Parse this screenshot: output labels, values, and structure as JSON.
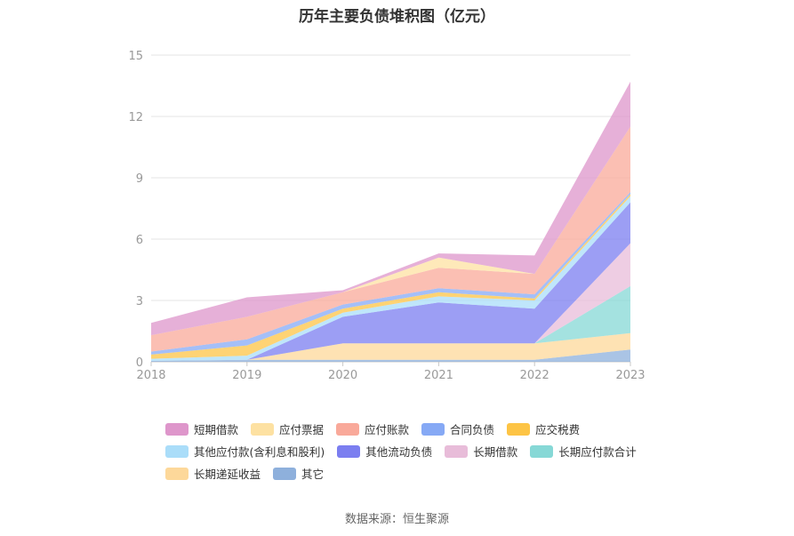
{
  "chart_data": {
    "type": "area",
    "stacked": true,
    "title": "历年主要负债堆积图（亿元）",
    "categories": [
      "2018",
      "2019",
      "2020",
      "2021",
      "2022",
      "2023"
    ],
    "ylim": [
      0,
      15
    ],
    "yticks": [
      0,
      3,
      6,
      9,
      12,
      15
    ],
    "series": [
      {
        "name": "其它",
        "color": "#8eb0dc",
        "values": [
          0.05,
          0.1,
          0.1,
          0.1,
          0.1,
          0.6
        ]
      },
      {
        "name": "长期递延收益",
        "color": "#fdd89a",
        "values": [
          0.0,
          0.0,
          0.8,
          0.8,
          0.8,
          0.8
        ]
      },
      {
        "name": "长期应付款合计",
        "color": "#86d8d6",
        "values": [
          0.0,
          0.0,
          0.0,
          0.0,
          0.0,
          2.3
        ]
      },
      {
        "name": "长期借款",
        "color": "#e8bcd9",
        "values": [
          0.0,
          0.0,
          0.0,
          0.0,
          0.0,
          2.1
        ]
      },
      {
        "name": "其他流动负债",
        "color": "#7b7ef0",
        "values": [
          0.0,
          0.0,
          1.3,
          2.0,
          1.7,
          2.0
        ]
      },
      {
        "name": "其他应付款(含利息和股利)",
        "color": "#aaddf9",
        "values": [
          0.1,
          0.2,
          0.2,
          0.3,
          0.4,
          0.3
        ]
      },
      {
        "name": "应交税费",
        "color": "#fdc445",
        "values": [
          0.2,
          0.5,
          0.2,
          0.2,
          0.1,
          0.1
        ]
      },
      {
        "name": "合同负债",
        "color": "#86a9f5",
        "values": [
          0.15,
          0.3,
          0.2,
          0.2,
          0.2,
          0.1
        ]
      },
      {
        "name": "应付账款",
        "color": "#f9a99a",
        "values": [
          0.8,
          1.1,
          0.6,
          1.0,
          1.0,
          3.2
        ]
      },
      {
        "name": "应付票据",
        "color": "#fde1a2",
        "values": [
          0.0,
          0.0,
          0.0,
          0.5,
          0.0,
          0.0
        ]
      },
      {
        "name": "短期借款",
        "color": "#de96cb",
        "values": [
          0.6,
          0.95,
          0.1,
          0.2,
          0.9,
          2.2
        ]
      }
    ]
  },
  "legend": {
    "rows": [
      [
        {
          "name": "短期借款",
          "color": "#de96cb"
        },
        {
          "name": "应付票据",
          "color": "#fde1a2"
        },
        {
          "name": "应付账款",
          "color": "#f9a99a"
        },
        {
          "name": "合同负债",
          "color": "#86a9f5"
        },
        {
          "name": "应交税费",
          "color": "#fdc445"
        }
      ],
      [
        {
          "name": "其他应付款(含利息和股利)",
          "color": "#aaddf9"
        },
        {
          "name": "其他流动负债",
          "color": "#7b7ef0"
        },
        {
          "name": "长期借款",
          "color": "#e8bcd9"
        },
        {
          "name": "长期应付款合计",
          "color": "#86d8d6"
        }
      ],
      [
        {
          "name": "长期递延收益",
          "color": "#fdd89a"
        },
        {
          "name": "其它",
          "color": "#8eb0dc"
        }
      ]
    ]
  },
  "source": "数据来源：恒生聚源"
}
